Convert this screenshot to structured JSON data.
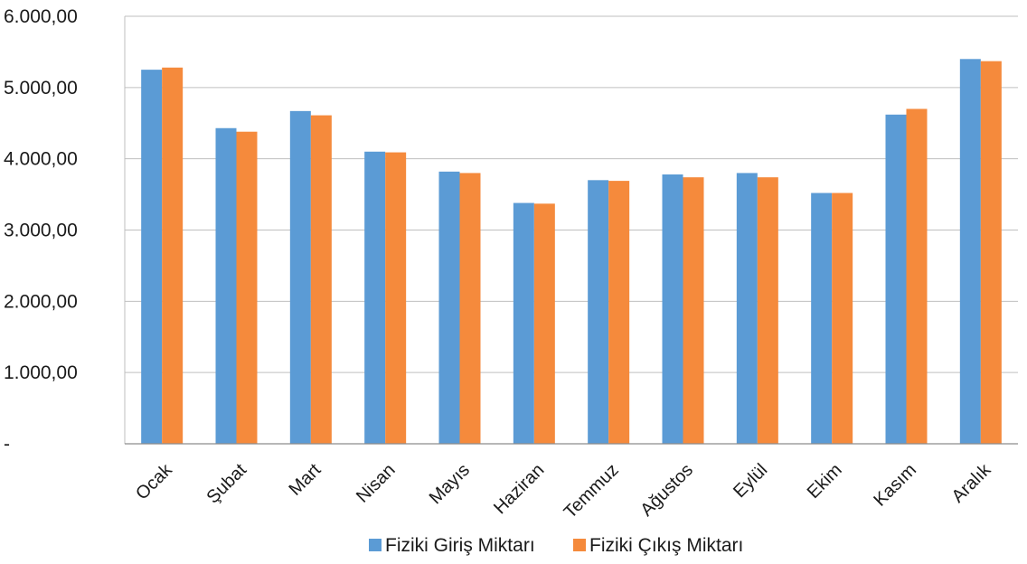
{
  "chart_data": {
    "type": "bar",
    "title": "",
    "xlabel": "",
    "ylabel": "",
    "categories": [
      "Ocak",
      "Şubat",
      "Mart",
      "Nisan",
      "Mayıs",
      "Haziran",
      "Temmuz",
      "Ağustos",
      "Eylül",
      "Ekim",
      "Kasım",
      "Aralık"
    ],
    "series": [
      {
        "name": "Fiziki Giriş Miktarı",
        "color": "#5B9BD5",
        "values": [
          5250,
          4430,
          4670,
          4100,
          3820,
          3380,
          3700,
          3780,
          3800,
          3520,
          4620,
          5400
        ]
      },
      {
        "name": "Fiziki Çıkış Miktarı",
        "color": "#F58A3C",
        "values": [
          5280,
          4380,
          4610,
          4090,
          3800,
          3370,
          3690,
          3740,
          3740,
          3520,
          4700,
          5370
        ]
      }
    ],
    "ylim": [
      0,
      6000
    ],
    "yticks": [
      0,
      1000,
      2000,
      3000,
      4000,
      5000,
      6000
    ],
    "ytick_labels": [
      "-",
      "1.000,00",
      "2.000,00",
      "3.000,00",
      "4.000,00",
      "5.000,00",
      "6.000,00"
    ],
    "grid": true,
    "legend_position": "bottom"
  }
}
